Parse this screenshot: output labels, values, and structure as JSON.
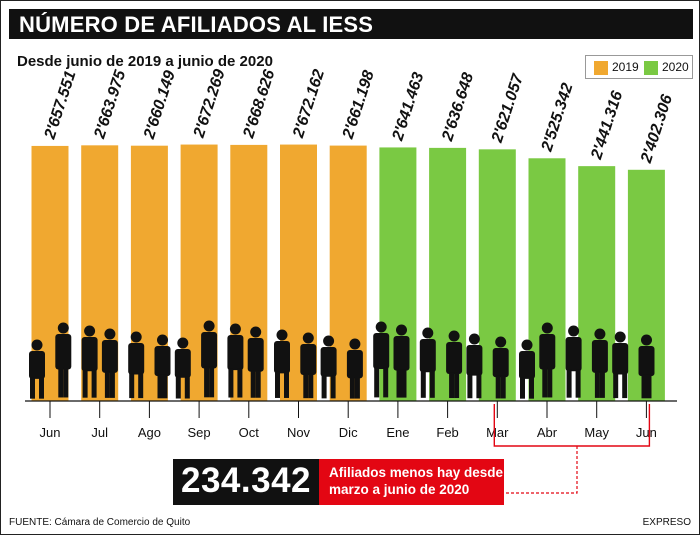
{
  "header": {
    "title": "NÚMERO DE AFILIADOS AL IESS",
    "subtitle": "Desde junio de 2019 a junio de 2020"
  },
  "legend": [
    {
      "label": "2019",
      "color": "#f0a830"
    },
    {
      "label": "2020",
      "color": "#7ac943"
    }
  ],
  "chart_data": {
    "type": "bar",
    "categories": [
      "Jun",
      "Jul",
      "Ago",
      "Sep",
      "Oct",
      "Nov",
      "Dic",
      "Ene",
      "Feb",
      "Mar",
      "Abr",
      "May",
      "Jun"
    ],
    "values": [
      2657551,
      2663975,
      2660149,
      2672269,
      2668626,
      2672162,
      2661198,
      2641463,
      2636648,
      2621057,
      2525342,
      2441316,
      2402306
    ],
    "value_labels": [
      "2'657.551",
      "2'663.975",
      "2'660.149",
      "2'672.269",
      "2'668.626",
      "2'672.162",
      "2'661.198",
      "2'641.463",
      "2'636.648",
      "2'621.057",
      "2'525.342",
      "2'441.316",
      "2'402.306"
    ],
    "years": [
      "2019",
      "2019",
      "2019",
      "2019",
      "2019",
      "2019",
      "2019",
      "2020",
      "2020",
      "2020",
      "2020",
      "2020",
      "2020"
    ],
    "colors": {
      "2019": "#f0a830",
      "2020": "#7ac943"
    },
    "title": "NÚMERO DE AFILIADOS AL IESS",
    "subtitle": "Desde junio de 2019 a junio de 2020",
    "legend_position": "top-right"
  },
  "callout": {
    "number": "234.342",
    "text": "Afiliados menos hay desde\nmarzo a junio de 2020",
    "accent": "#e30613"
  },
  "footer": {
    "source": "FUENTE: Cámara de Comercio de Quito",
    "brand": "EXPRESO"
  }
}
